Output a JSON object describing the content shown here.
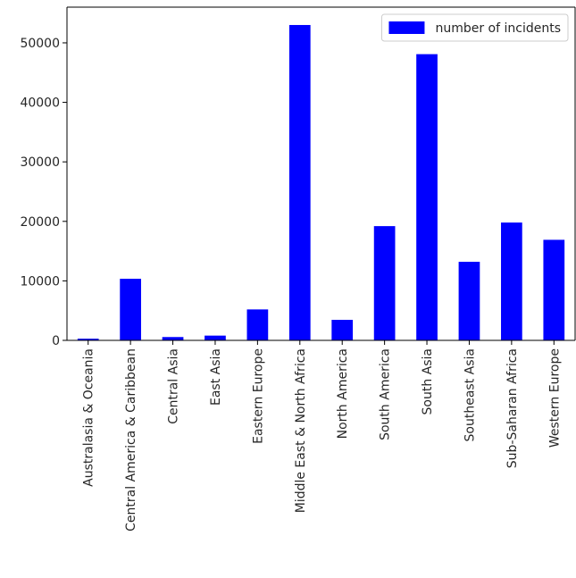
{
  "chart_data": {
    "type": "bar",
    "title": "",
    "xlabel": "",
    "ylabel": "",
    "categories": [
      "Australasia & Oceania",
      "Central America & Caribbean",
      "Central Asia",
      "East Asia",
      "Eastern Europe",
      "Middle East & North Africa",
      "North America",
      "South America",
      "South Asia",
      "Southeast Asia",
      "Sub-Saharan Africa",
      "Western Europe"
    ],
    "series": [
      {
        "name": "number of incidents",
        "color": "#0000ff",
        "values": [
          280,
          10350,
          560,
          800,
          5200,
          53000,
          3450,
          19200,
          48100,
          13200,
          19800,
          16900
        ]
      }
    ],
    "ylim": [
      0,
      56000
    ],
    "yticks": [
      0,
      10000,
      20000,
      30000,
      40000,
      50000
    ],
    "ytick_labels": [
      "0",
      "10000",
      "20000",
      "30000",
      "40000",
      "50000"
    ],
    "grid": false,
    "legend_position": "top-right"
  }
}
